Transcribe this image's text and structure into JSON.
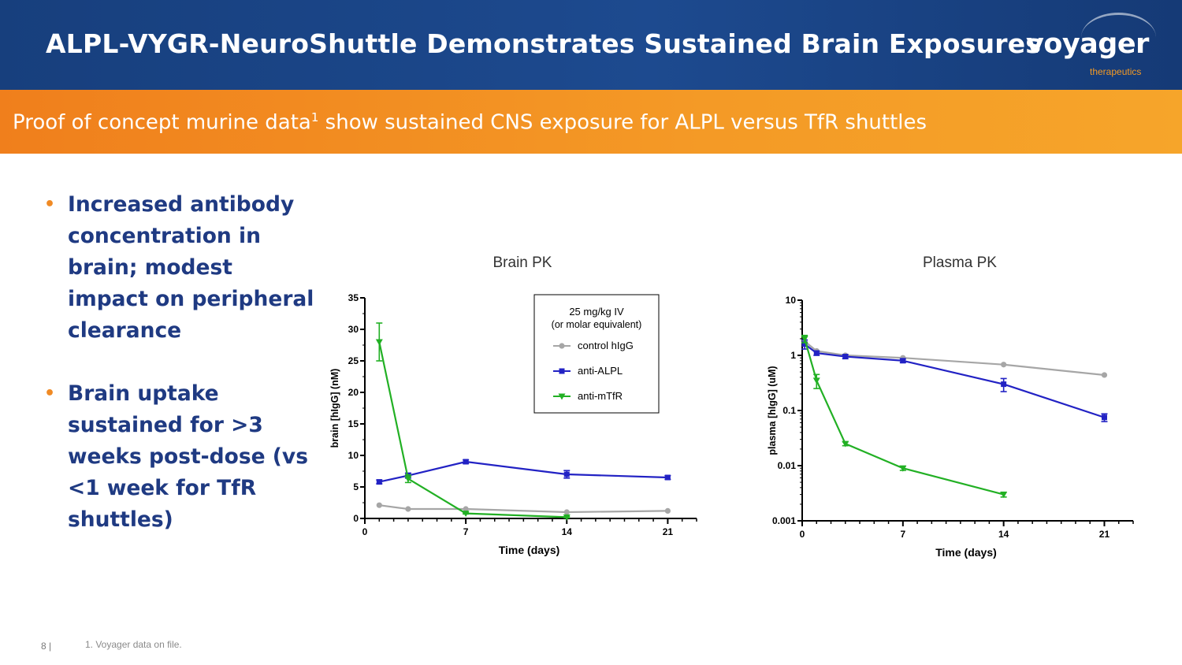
{
  "header": {
    "title": "ALPL-VYGR-NeuroShuttle Demonstrates Sustained Brain Exposures",
    "logo_word": "voyager",
    "logo_sub": "therapeutics"
  },
  "banner": {
    "text_before": "Proof of concept murine data",
    "superscript": "1",
    "text_after": " show sustained CNS exposure for ALPL versus TfR shuttles"
  },
  "bullets": [
    {
      "marker": "•",
      "text": "Increased antibody concentration in brain; modest impact on peripheral clearance"
    },
    {
      "marker": "•",
      "text": "Brain uptake sustained for >3 weeks post-dose (vs <1 week for TfR shuttles)"
    }
  ],
  "footer": {
    "page": "8 |",
    "note": "1. Voyager data on file."
  },
  "colors": {
    "control": "#a6a6a6",
    "alpl": "#2222c4",
    "tfr": "#22b024"
  },
  "chart_data": [
    {
      "type": "line",
      "title": "Brain PK",
      "xlabel": "Time (days)",
      "ylabel": "brain [hIgG] (nM)",
      "xlim": [
        0,
        23
      ],
      "ylim": [
        0,
        35
      ],
      "x_ticks": [
        0,
        7,
        14,
        21
      ],
      "y_ticks": [
        0,
        5,
        10,
        15,
        20,
        25,
        30,
        35
      ],
      "y_tick_labels": [
        "0",
        "5",
        "10",
        "15",
        "20",
        "25",
        "30",
        "35"
      ],
      "grid": false,
      "legend": {
        "title_line1": "25 mg/kg IV",
        "title_line2": "(or molar equivalent)",
        "placement": "top-center"
      },
      "series": [
        {
          "name": "control hIgG",
          "marker": "circle",
          "x": [
            1,
            3,
            7,
            14,
            21
          ],
          "y": [
            2.1,
            1.5,
            1.5,
            1.0,
            1.2
          ]
        },
        {
          "name": "anti-ALPL",
          "marker": "square",
          "x": [
            1,
            3,
            7,
            14,
            21
          ],
          "y": [
            5.8,
            6.8,
            9.0,
            7.0,
            6.5
          ],
          "err": [
            0.3,
            0.4,
            0.3,
            0.6,
            0.3
          ]
        },
        {
          "name": "anti-mTfR",
          "marker": "triangle-down",
          "x": [
            1,
            3,
            7,
            14
          ],
          "y": [
            28.0,
            6.3,
            0.8,
            0.2
          ],
          "err": [
            3.0,
            0.6,
            0.1,
            0.1
          ]
        }
      ]
    },
    {
      "type": "line",
      "title": "Plasma PK",
      "xlabel": "Time (days)",
      "ylabel": "plasma [hIgG] (uM)",
      "yscale": "log",
      "xlim": [
        0,
        23
      ],
      "ylim": [
        0.001,
        10
      ],
      "x_ticks": [
        0,
        7,
        14,
        21
      ],
      "y_ticks": [
        0.001,
        0.01,
        0.1,
        1,
        10
      ],
      "y_tick_labels": [
        "0.001",
        "0.01",
        "0.1",
        "1",
        "10"
      ],
      "grid": false,
      "series": [
        {
          "name": "control hIgG",
          "marker": "circle",
          "x": [
            0.17,
            1,
            3,
            7,
            14,
            21
          ],
          "y": [
            1.8,
            1.2,
            1.0,
            0.9,
            0.68,
            0.44
          ]
        },
        {
          "name": "anti-ALPL",
          "marker": "square",
          "x": [
            0.17,
            1,
            3,
            7,
            14,
            21
          ],
          "y": [
            1.6,
            1.1,
            0.95,
            0.8,
            0.3,
            0.075
          ],
          "err": [
            0.3,
            0.1,
            0.08,
            0.06,
            0.08,
            0.012
          ]
        },
        {
          "name": "anti-mTfR",
          "marker": "triangle-down",
          "x": [
            0.17,
            1,
            3,
            7,
            14
          ],
          "y": [
            2.0,
            0.35,
            0.025,
            0.009,
            0.003
          ],
          "err": [
            0.3,
            0.1,
            0.002,
            0.0008,
            0.0003
          ]
        }
      ]
    }
  ]
}
